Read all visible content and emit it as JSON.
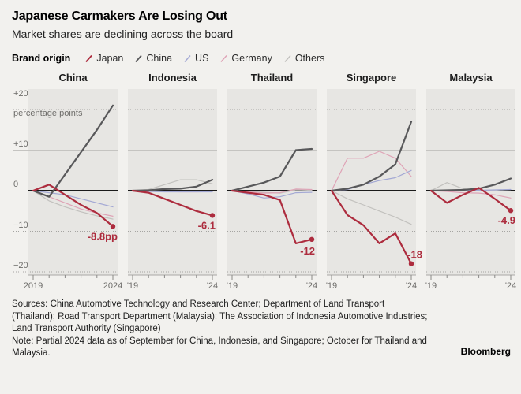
{
  "header": {
    "title": "Japanese Carmakers Are Losing Out",
    "subtitle": "Market shares are declining across the board"
  },
  "legend": {
    "label": "Brand origin",
    "items": [
      {
        "name": "Japan",
        "key": "japan"
      },
      {
        "name": "China",
        "key": "china"
      },
      {
        "name": "US",
        "key": "us"
      },
      {
        "name": "Germany",
        "key": "germany"
      },
      {
        "name": "Others",
        "key": "others"
      }
    ]
  },
  "colors": {
    "japan": "#ad2c3e",
    "china": "#58585a",
    "us": "#a3a8d4",
    "germany": "#dfa3b6",
    "others": "#c2c1be",
    "panel_bg": "#e7e6e3",
    "grid_dotted": "#a5a4a1",
    "grid_solid": "#c5c4c1",
    "zero_line": "#1a1a1a",
    "axis": "#a9a8a5",
    "tick": "#8a8987",
    "tick_label": "#6e6d6a"
  },
  "chart_data": {
    "type": "line",
    "x": [
      2019,
      2020,
      2021,
      2022,
      2023,
      2024
    ],
    "unit": "percentage points",
    "ylim": [
      -22,
      22
    ],
    "yticks": [
      {
        "label": "+20",
        "value": 20
      },
      {
        "label": "+10",
        "value": 10
      },
      {
        "label": "0",
        "value": 0
      },
      {
        "label": "−10",
        "value": -10
      },
      {
        "label": "−20",
        "value": -20
      }
    ],
    "ylabel_unit_line": "percentage points",
    "x_tick_labels_first": [
      "2019",
      "2024"
    ],
    "x_tick_labels_rest": [
      "'19",
      "'24"
    ],
    "series_order": [
      "others",
      "germany",
      "us",
      "china",
      "japan"
    ],
    "panels": [
      {
        "title": "China",
        "end_label": "-8.8pp",
        "series": {
          "japan": [
            0,
            1.5,
            -1,
            -3.5,
            -5.5,
            -8.8
          ],
          "china": [
            0,
            -1.5,
            4,
            9.5,
            15,
            21
          ],
          "us": [
            0,
            -0.5,
            -1,
            -2,
            -3,
            -4
          ],
          "germany": [
            0,
            -1.5,
            -3,
            -4.5,
            -5.5,
            -6.3
          ],
          "others": [
            0,
            -2.5,
            -4,
            -5.2,
            -6.2,
            -7
          ]
        }
      },
      {
        "title": "Indonesia",
        "end_label": "-6.1",
        "series": {
          "japan": [
            0,
            -0.5,
            -2,
            -3.5,
            -5,
            -6.1
          ],
          "china": [
            0,
            0.1,
            0.4,
            0.5,
            1,
            2.7
          ],
          "us": [
            0,
            -0.2,
            -0.3,
            -0.3,
            -0.3,
            -0.3
          ],
          "germany": [
            0,
            -0.1,
            -0.2,
            -0.3,
            -0.3,
            -0.2
          ],
          "others": [
            0,
            0.3,
            1.5,
            2.7,
            2.7,
            1.7
          ]
        }
      },
      {
        "title": "Thailand",
        "end_label": "-12",
        "series": {
          "japan": [
            0,
            -0.5,
            -1,
            -2.3,
            -13,
            -12
          ],
          "china": [
            0,
            1,
            2,
            3.5,
            10,
            10.3
          ],
          "us": [
            0,
            -0.8,
            -1.8,
            -1.5,
            -0.5,
            -0.4
          ],
          "germany": [
            0,
            -0.3,
            -0.6,
            -0.5,
            0.4,
            0.3
          ],
          "others": [
            0,
            -0.2,
            -0.4,
            -0.6,
            0.2,
            0.1
          ]
        }
      },
      {
        "title": "Singapore",
        "end_label": "-18",
        "series": {
          "japan": [
            0,
            -6,
            -8.5,
            -13,
            -10.5,
            -18
          ],
          "china": [
            0,
            0.5,
            1.5,
            3.5,
            6.5,
            17
          ],
          "us": [
            0,
            0.3,
            1.5,
            2.5,
            3.2,
            5
          ],
          "germany": [
            0,
            8,
            8,
            9.7,
            8,
            3.5
          ],
          "others": [
            0,
            -2,
            -3.5,
            -5,
            -6.5,
            -8.3
          ]
        }
      },
      {
        "title": "Malaysia",
        "end_label": "-4.9",
        "series": {
          "japan": [
            0,
            -3,
            -1,
            0.7,
            -2,
            -4.9
          ],
          "china": [
            0,
            0.1,
            0.2,
            0.5,
            1.5,
            3
          ],
          "us": [
            0,
            0,
            0.1,
            0.1,
            0.2,
            0.3
          ],
          "germany": [
            0,
            -0.2,
            -0.5,
            -0.6,
            -1,
            -1.8
          ],
          "others": [
            0,
            2,
            0.5,
            0,
            0.1,
            0.3
          ]
        }
      }
    ]
  },
  "footer": {
    "sources": "Sources: China Automotive Technology and Research Center; Department of Land Transport (Thailand); Road Transport Department (Malaysia); The Association of Indonesia Automotive Industries; Land Transport Authority (Singapore)",
    "note": "Note: Partial 2024 data as of September for China, Indonesia, and Singapore; October for Thailand and Malaysia.",
    "brand": "Bloomberg"
  }
}
